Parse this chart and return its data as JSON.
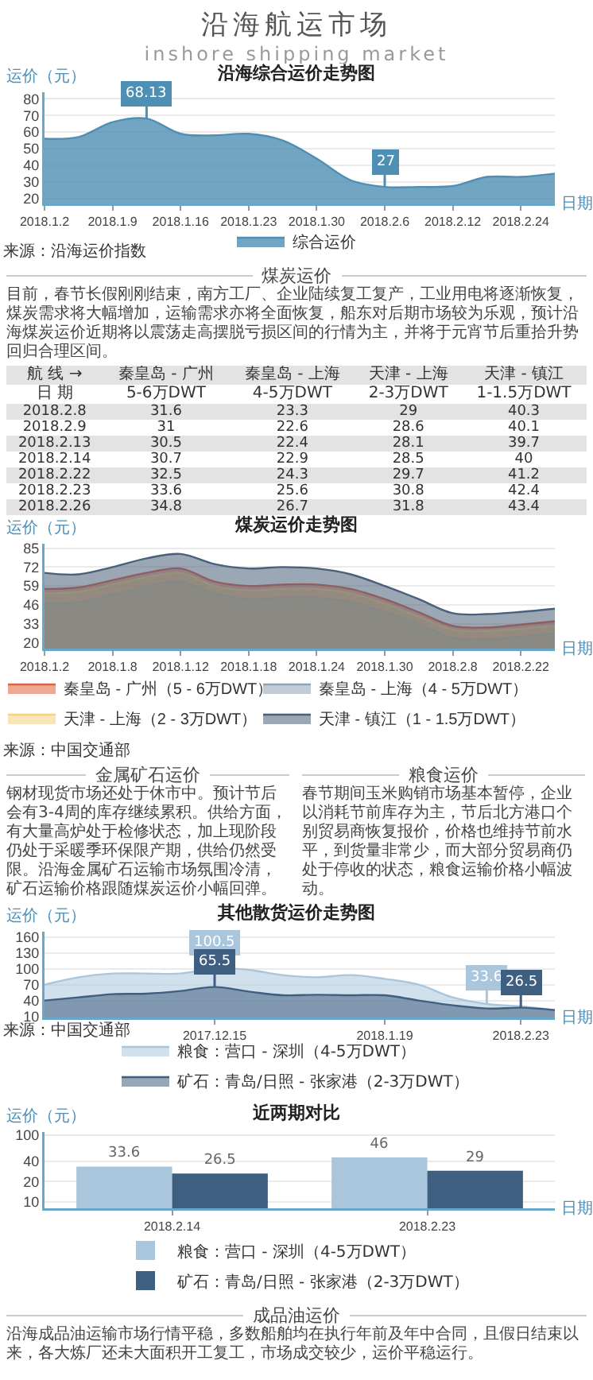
{
  "chart_data": [
    {
      "type": "other",
      "title": "沿海航运市场",
      "subtitle": "inshore shipping market"
    },
    {
      "type": "area",
      "title": "沿海综合运价走势图",
      "xlabel": "日期",
      "ylabel": "运价（元）",
      "categories": [
        "2018.1.2",
        null,
        "2018.1.9",
        null,
        "2018.1.16",
        null,
        "2018.1.23",
        null,
        "2018.1.30",
        null,
        "2018.2.6",
        null,
        "2018.2.12",
        null,
        "2018.2.24",
        null
      ],
      "ylim": [
        17,
        84
      ],
      "yticks": [
        20,
        30,
        40,
        50,
        60,
        70,
        80
      ],
      "grid": "y",
      "legend": "bottom",
      "annotations": [
        "来源：沿海运价指数"
      ],
      "series": [
        {
          "name": "综合运价",
          "color": "#4f8fb3",
          "values": [
            56,
            57,
            66,
            68.13,
            59,
            58,
            59,
            55,
            44,
            31,
            27,
            27,
            27.5,
            33,
            33,
            35
          ],
          "value_labels": [
            null,
            null,
            null,
            "68.13",
            null,
            null,
            null,
            null,
            null,
            null,
            "27",
            null,
            null,
            null,
            null,
            null
          ]
        }
      ]
    },
    {
      "type": "other",
      "title": "煤炭运价",
      "annotations": [
        "目前，春节长假刚刚结束，南方工厂、企业陆续复工复产，工业用电将逐渐恢复，煤炭需求将大幅增加，运输需求亦将全面恢复，船东对后期市场较为乐观，预计沿海煤炭运价近期将以震荡走高摆脱亏损区间的行情为主，并将于元宵节后重拾升势回归合理区间。"
      ]
    },
    {
      "type": "other",
      "ylabel": "航 线 →",
      "xlabel": "日 期",
      "data_labels": true,
      "categories": [
        "2018.2.8",
        "2018.2.9",
        "2018.2.13",
        "2018.2.14",
        "2018.2.22",
        "2018.2.23",
        "2018.2.26"
      ],
      "series": [
        {
          "name": "秦皇岛 - 广州\n5-6万DWT",
          "values": [
            31.6,
            31,
            30.5,
            30.7,
            32.5,
            33.6,
            34.8
          ]
        },
        {
          "name": "秦皇岛 - 上海\n4-5万DWT",
          "values": [
            23.3,
            22.6,
            22.4,
            22.9,
            24.3,
            25.6,
            26.7
          ]
        },
        {
          "name": "天津 - 上海\n2-3万DWT",
          "values": [
            29,
            28.6,
            28.1,
            28.5,
            29.7,
            30.8,
            31.8
          ]
        },
        {
          "name": "天津 - 镇江\n1-1.5万DWT",
          "values": [
            40.3,
            40.1,
            39.7,
            40,
            41.2,
            42.4,
            43.4
          ]
        }
      ]
    },
    {
      "type": "area",
      "title": "煤炭运价走势图",
      "xlabel": "日期",
      "ylabel": "运价（元）",
      "categories": [
        "2018.1.2",
        null,
        "2018.1.8",
        null,
        "2018.1.12",
        null,
        "2018.1.18",
        null,
        "2018.1.24",
        null,
        "2018.1.30",
        null,
        "2018.2.8",
        null,
        "2018.2.22",
        null
      ],
      "ylim": [
        16,
        88
      ],
      "yticks": [
        20,
        33,
        46,
        59,
        72,
        85
      ],
      "grid": "y",
      "legend": "bottom",
      "annotations": [
        "来源：中国交通部"
      ],
      "series": [
        {
          "name": "秦皇岛 - 广州（5 - 6万DWT）",
          "color": "#e0603f",
          "values": [
            57,
            58,
            63,
            68,
            71,
            62,
            59,
            60,
            60,
            57,
            50,
            41,
            31.6,
            30.5,
            32.5,
            34.8
          ]
        },
        {
          "name": "秦皇岛 - 上海（4 - 5万DWT）",
          "color": "#8ea3b5",
          "values": [
            47,
            48,
            53,
            59,
            62,
            54,
            50,
            51,
            51,
            48,
            41,
            33,
            23.3,
            22.4,
            24.3,
            26.7
          ]
        },
        {
          "name": "天津 - 上海（2 - 3万DWT）",
          "color": "#f2d27a",
          "values": [
            54,
            55,
            60,
            65,
            68,
            59,
            56,
            57,
            57,
            54,
            47,
            38,
            29,
            28.1,
            29.7,
            31.8
          ]
        },
        {
          "name": "天津 - 镇江（1 - 1.5万DWT）",
          "color": "#4a5f7a",
          "values": [
            68,
            67,
            72,
            78,
            81,
            74,
            71,
            72,
            71,
            67,
            59,
            50,
            40.3,
            39.7,
            41.2,
            43.4
          ]
        }
      ]
    },
    {
      "type": "other",
      "title": "金属矿石运价",
      "annotations": [
        "钢材现货市场还处于休市中。预计节后会有3-4周的库存继续累积。供给方面，有大量高炉处于检修状态，加上现阶段仍处于采暖季环保限产期，供给仍然受限。沿海金属矿石运输市场氛围冷清，矿石运输价格跟随煤炭运价小幅回弹。"
      ]
    },
    {
      "type": "other",
      "title": "粮食运价",
      "annotations": [
        "春节期间玉米购销市场基本暂停，企业以消耗节前库存为主，节后北方港口个别贸易商恢复报价，价格也维持节前水平，到货量非常少，而大部分贸易商仍处于停收的状态，粮食运输价格小幅波动。"
      ]
    },
    {
      "type": "area",
      "title": "其他散货运价走势图",
      "xlabel": "日期",
      "ylabel": "运价（元）",
      "categories": [
        null,
        null,
        null,
        null,
        null,
        "2017.12.15",
        null,
        null,
        null,
        null,
        "2018.1.19",
        null,
        null,
        null,
        "2018.2.23",
        null
      ],
      "ylim": [
        8,
        170
      ],
      "yticks": [
        10,
        40,
        70,
        100,
        130,
        160
      ],
      "grid": "y",
      "legend": "bottom",
      "annotations": [
        "来源：中国交通部"
      ],
      "series": [
        {
          "name": "粮食：营口 - 深圳（4-5万DWT）",
          "color": "#a9c6dd",
          "values": [
            70,
            84,
            91,
            91,
            91,
            100.5,
            98,
            88,
            84,
            88,
            81,
            70,
            46,
            33.6,
            29,
            22
          ],
          "value_labels": [
            null,
            null,
            null,
            null,
            null,
            "100.5",
            null,
            null,
            null,
            null,
            null,
            null,
            null,
            "33.6",
            null,
            null
          ]
        },
        {
          "name": "矿石：青岛/日照 - 张家港（2-3万DWT）",
          "color": "#3f5f80",
          "values": [
            40,
            46,
            52,
            53,
            58,
            65.5,
            57,
            50,
            51,
            50,
            50,
            40,
            31,
            25,
            26.5,
            22
          ],
          "value_labels": [
            null,
            null,
            null,
            null,
            null,
            "65.5",
            null,
            null,
            null,
            null,
            null,
            null,
            null,
            null,
            "26.5",
            null
          ]
        }
      ]
    },
    {
      "type": "bar",
      "title": "近两期对比",
      "xlabel": "日期",
      "ylabel": "运价（元）",
      "categories": [
        "2018.2.14",
        "2018.2.23"
      ],
      "log": true,
      "ylim": [
        8,
        110
      ],
      "yticks": [
        10,
        20,
        40,
        100
      ],
      "grid": "y",
      "legend": "bottom",
      "data_labels": true,
      "series": [
        {
          "name": "粮食：营口 - 深圳（4-5万DWT）",
          "color": "#a9c6dd",
          "values": [
            33.6,
            46
          ]
        },
        {
          "name": "矿石：青岛/日照 - 张家港（2-3万DWT）",
          "color": "#3f5f80",
          "values": [
            26.5,
            29
          ]
        }
      ]
    },
    {
      "type": "other",
      "title": "成品油运价",
      "annotations": [
        "沿海成品油运输市场行情平稳，多数船舶均在执行年前及年中合同，且假日结束以来，各大炼厂还未大面积开工复工，市场成交较少，运价平稳运行。"
      ]
    }
  ]
}
